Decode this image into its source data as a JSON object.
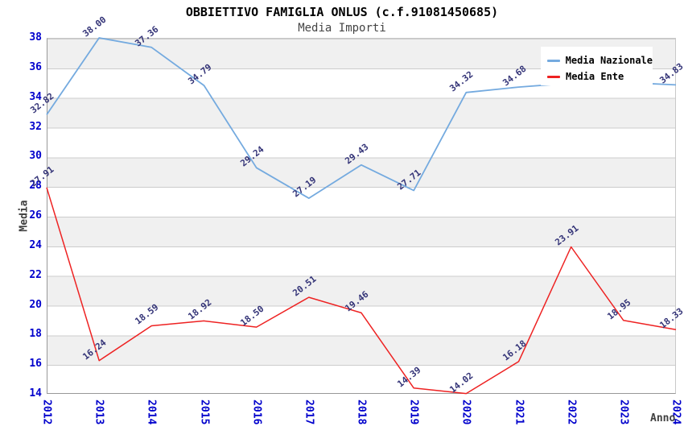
{
  "header": {
    "title": "OBBIETTIVO FAMIGLIA ONLUS (c.f.91081450685)",
    "subtitle": "Media Importi"
  },
  "axes": {
    "y_title": "Media",
    "x_title": "Anno",
    "y_ticks": [
      "38",
      "36",
      "34",
      "32",
      "30",
      "28",
      "26",
      "24",
      "22",
      "20",
      "18",
      "16",
      "14"
    ],
    "x_ticks": [
      "2012",
      "2013",
      "2014",
      "2015",
      "2016",
      "2017",
      "2018",
      "2019",
      "2020",
      "2021",
      "2022",
      "2023",
      "2024"
    ]
  },
  "legend": [
    {
      "label": "Media Nazionale",
      "color": "#74AADF"
    },
    {
      "label": "Media Ente",
      "color": "#EE2222"
    }
  ],
  "colors": {
    "tick_label": "#0000CC",
    "data_label": "#333377",
    "band": "#F0F0F0",
    "gridline": "#CCCCCC",
    "media_nazionale_line": "#74AADF",
    "media_ente_line": "#EE2222"
  },
  "chart_data": {
    "type": "line",
    "title": "OBBIETTIVO FAMIGLIA ONLUS (c.f.91081450685)",
    "subtitle": "Media Importi",
    "xlabel": "Anno",
    "ylabel": "Media",
    "x": [
      2012,
      2013,
      2014,
      2015,
      2016,
      2017,
      2018,
      2019,
      2020,
      2021,
      2022,
      2023,
      2024
    ],
    "ylim": [
      14,
      38
    ],
    "grid": "horizontal-bands",
    "legend_position": "top-right",
    "series": [
      {
        "name": "Media Nazionale",
        "color": "#74AADF",
        "values": [
          32.82,
          38.0,
          37.36,
          34.79,
          29.24,
          27.19,
          29.43,
          27.71,
          34.32,
          34.68,
          34.95,
          35.0,
          34.83
        ],
        "labels": [
          "32.82",
          "38.00",
          "37.36",
          "34.79",
          "29.24",
          "27.19",
          "29.43",
          "27.71",
          "34.32",
          "34.68",
          "",
          "",
          "34.83"
        ],
        "labels_hidden_by_legend": [
          "2022",
          "2023"
        ]
      },
      {
        "name": "Media Ente",
        "color": "#EE2222",
        "values": [
          27.91,
          16.24,
          18.59,
          18.92,
          18.5,
          20.51,
          19.46,
          14.39,
          14.02,
          16.18,
          23.91,
          18.95,
          18.33
        ],
        "labels": [
          "27.91",
          "16.24",
          "18.59",
          "18.92",
          "18.50",
          "20.51",
          "19.46",
          "14.39",
          "14.02",
          "16.18",
          "23.91",
          "18.95",
          "18.33"
        ]
      }
    ]
  }
}
